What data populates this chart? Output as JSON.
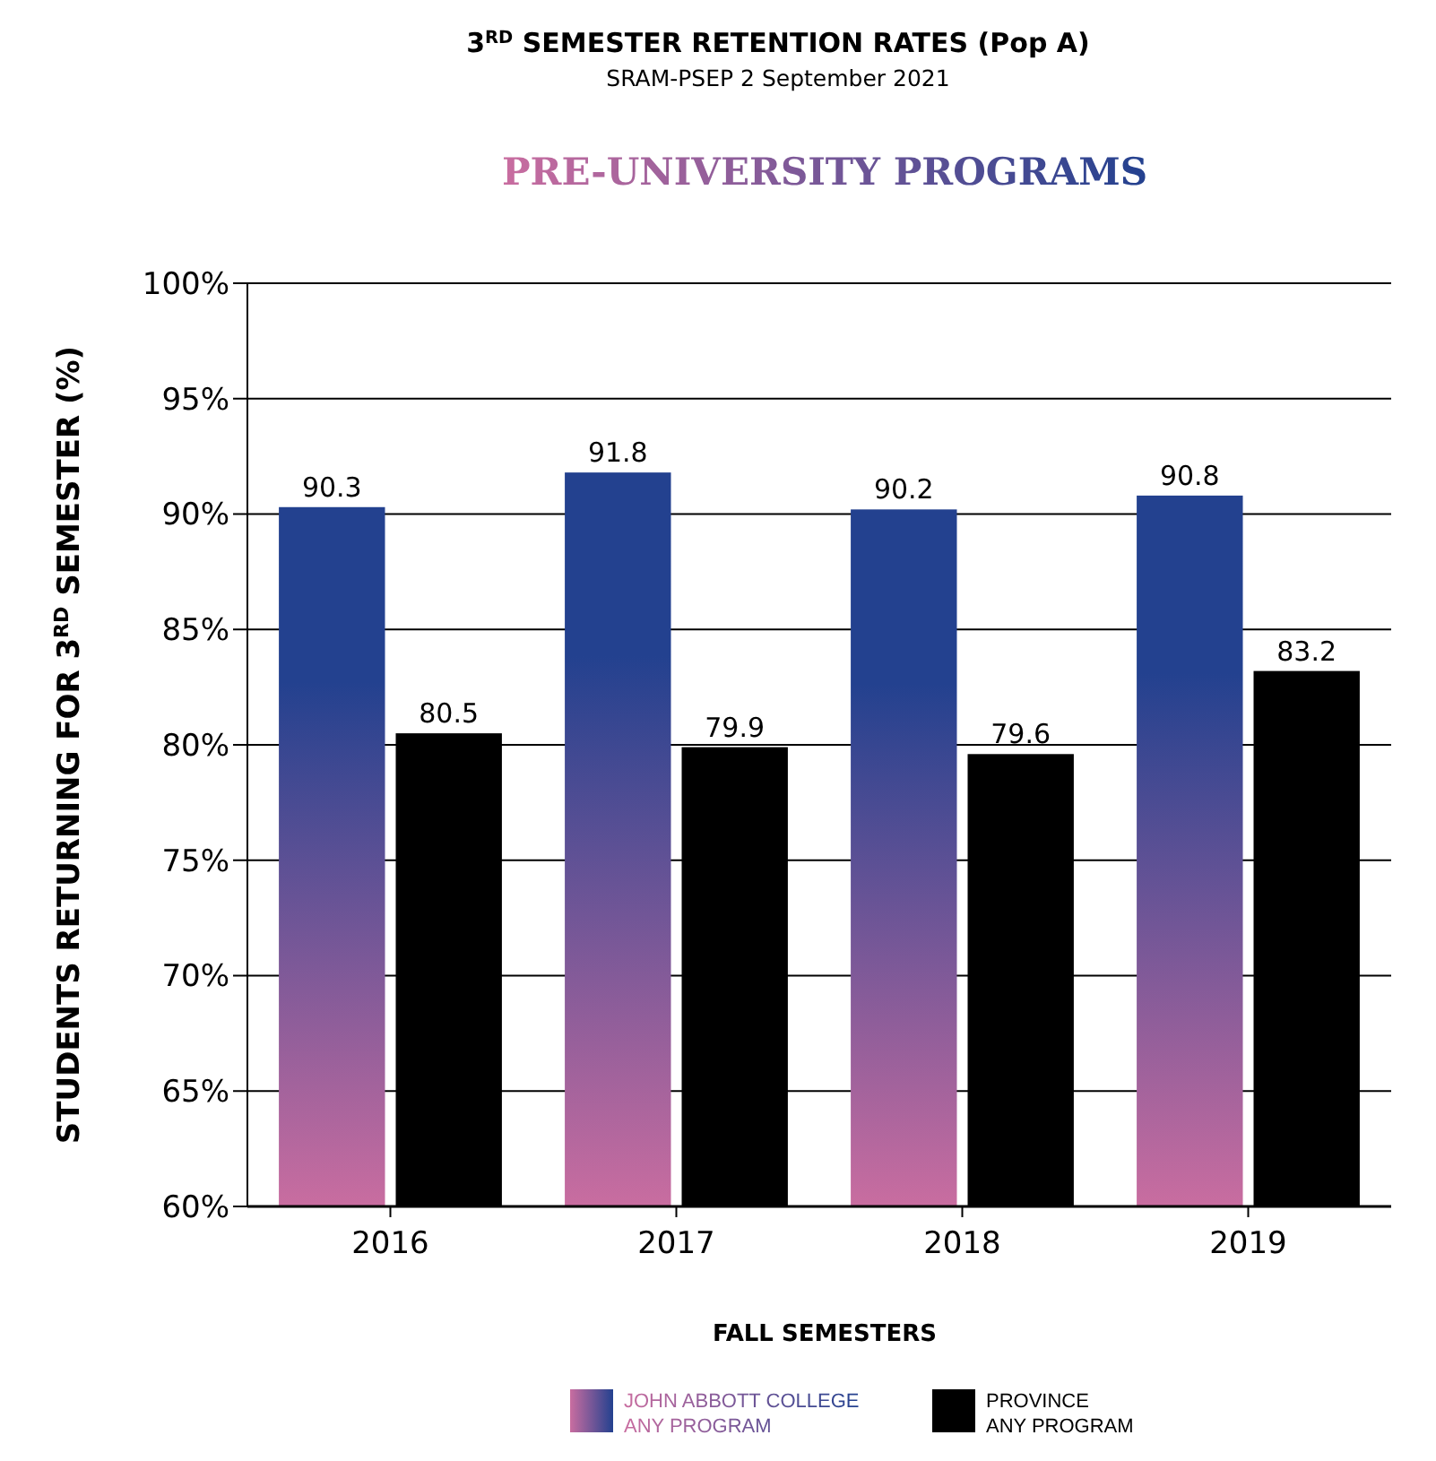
{
  "chart_data": {
    "type": "bar",
    "title": "3$^{RD}$ SEMESTER RETENTION RATES (Pop A)",
    "subtitle": "SRAM-PSEP 2 September 2021",
    "annotations": [
      "PRE-UNIVERSITY PROGRAMS"
    ],
    "xlabel": "FALL SEMESTERS",
    "ylabel": "STUDENTS RETURNING FOR 3$^{RD}$ SEMESTER (%)",
    "categories": [
      "2016",
      "2017",
      "2018",
      "2019"
    ],
    "series": [
      {
        "name": "JOHN ABBOTT COLLEGE\nANY PROGRAM",
        "color": "#23418f",
        "values": [
          90.3,
          91.8,
          90.2,
          90.8
        ]
      },
      {
        "name": "PROVINCE\nANY PROGRAM",
        "color": "#000000",
        "values": [
          80.5,
          79.9,
          79.6,
          83.2
        ]
      }
    ],
    "ylim": [
      60,
      100
    ],
    "yticks": [
      {
        "value": 60,
        "label": "60%"
      },
      {
        "value": 65,
        "label": "65%"
      },
      {
        "value": 70,
        "label": "70%"
      },
      {
        "value": 75,
        "label": "75%"
      },
      {
        "value": 80,
        "label": "80%"
      },
      {
        "value": 85,
        "label": "85%"
      },
      {
        "value": 90,
        "label": "90%"
      },
      {
        "value": 95,
        "label": "95%"
      },
      {
        "value": 100,
        "label": "100%"
      }
    ],
    "grid": "y",
    "legend": "bottom",
    "data_labels": true
  }
}
